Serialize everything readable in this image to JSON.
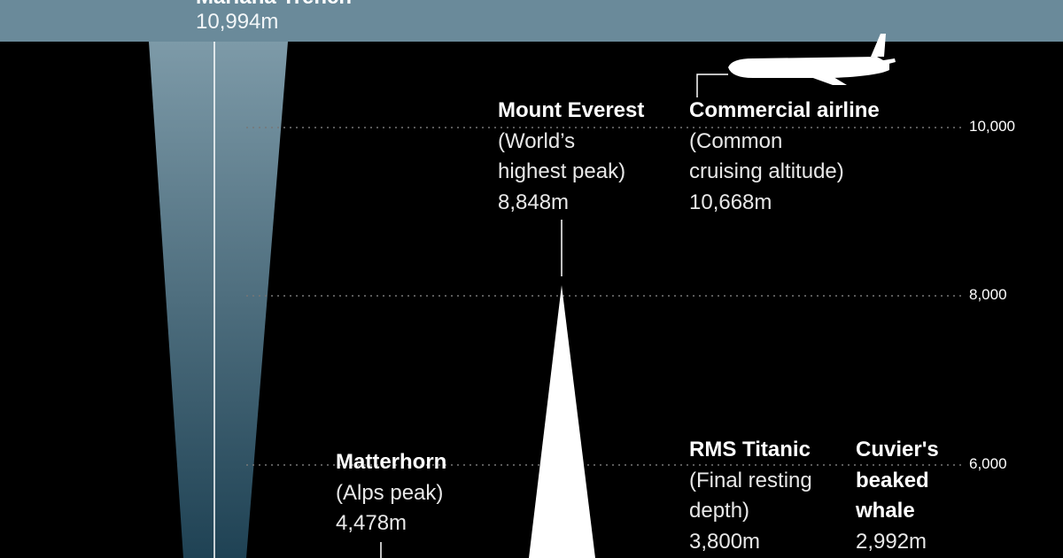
{
  "trench": {
    "name": "Mariana Trench",
    "value": "10,994m"
  },
  "scale_ticks": [
    "10,000",
    "8,000",
    "6,000"
  ],
  "everest": {
    "name": "Mount Everest",
    "lines": [
      "(World’s",
      "highest peak)",
      "8,848m"
    ]
  },
  "airline": {
    "name": "Commercial airline",
    "lines": [
      "(Common",
      "cruising altitude)",
      "10,668m"
    ]
  },
  "matterhorn": {
    "name": "Matterhorn",
    "lines": [
      "(Alps peak)",
      "4,478m"
    ]
  },
  "titanic": {
    "name": "RMS Titanic",
    "lines": [
      "(Final resting",
      "depth)",
      "3,800m"
    ]
  },
  "whale": {
    "name_lines": [
      "Cuvier's",
      "beaked",
      "whale"
    ],
    "value": "2,992m"
  },
  "colors": {
    "background": "#000000",
    "ocean_surface": "#6a8a9a",
    "trench_top": "#7d9aa8",
    "trench_bottom": "#1f4254",
    "gridline": "#777777",
    "peak": "#ffffff"
  }
}
